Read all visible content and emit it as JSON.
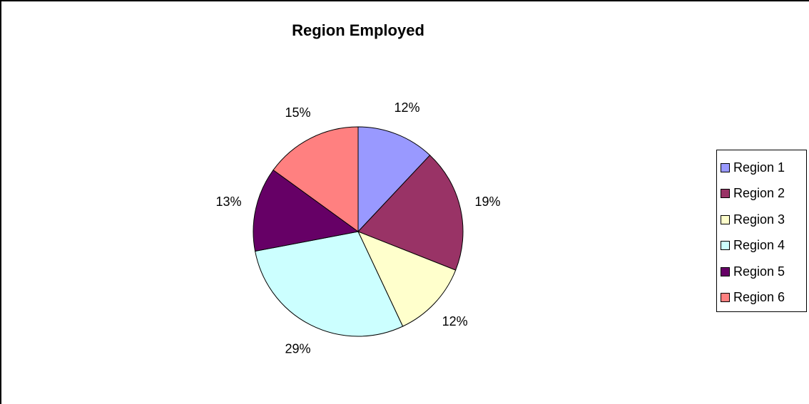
{
  "chart_data": {
    "type": "pie",
    "title": "Region Employed",
    "legend_position": "right",
    "categories": [
      "Region 1",
      "Region 2",
      "Region 3",
      "Region 4",
      "Region 5",
      "Region 6"
    ],
    "values": [
      12,
      19,
      12,
      29,
      13,
      15
    ],
    "labels": [
      "12%",
      "19%",
      "12%",
      "29%",
      "13%",
      "15%"
    ],
    "colors": [
      "#9999FF",
      "#993366",
      "#FFFFCC",
      "#CCFFFF",
      "#660066",
      "#FF8080"
    ]
  }
}
